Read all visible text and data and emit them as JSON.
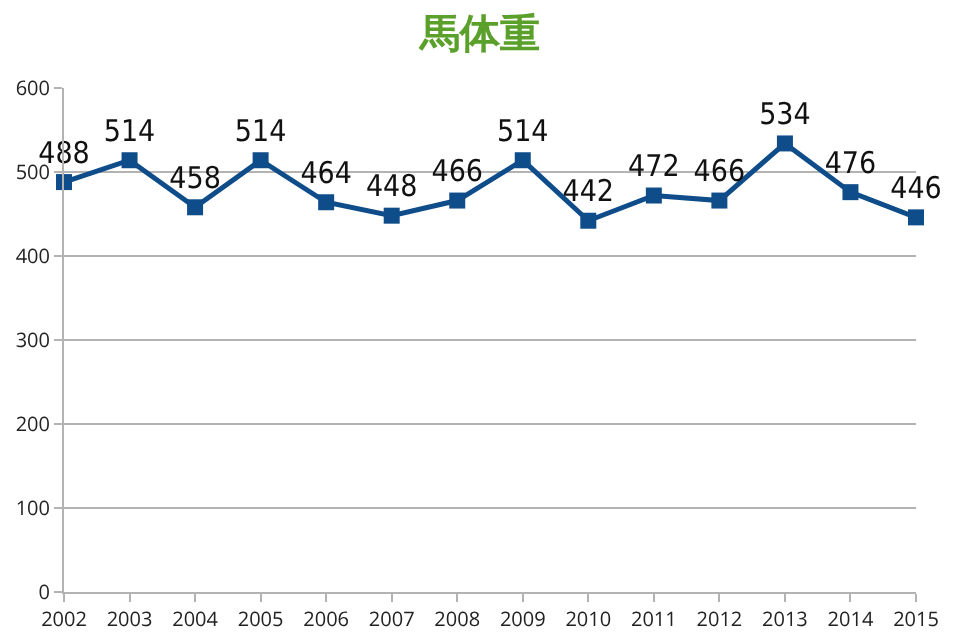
{
  "chart_data": {
    "type": "line",
    "title": "馬体重",
    "x": [
      2002,
      2003,
      2004,
      2005,
      2006,
      2007,
      2008,
      2009,
      2010,
      2011,
      2012,
      2013,
      2014,
      2015
    ],
    "series": [
      {
        "color": "#0f4c8a",
        "values": [
          488,
          514,
          458,
          514,
          464,
          448,
          466,
          514,
          442,
          472,
          466,
          534,
          476,
          446
        ]
      }
    ],
    "xlim": [
      2002,
      2015
    ],
    "xticks": [
      2002,
      2003,
      2004,
      2005,
      2006,
      2007,
      2008,
      2009,
      2010,
      2011,
      2012,
      2013,
      2014,
      2015
    ],
    "ylim": [
      0,
      600
    ],
    "yticks": [
      0,
      100,
      200,
      300,
      400,
      500,
      600
    ],
    "grid": "y",
    "marker": "square",
    "line_style": "solid",
    "data_labels": true
  }
}
